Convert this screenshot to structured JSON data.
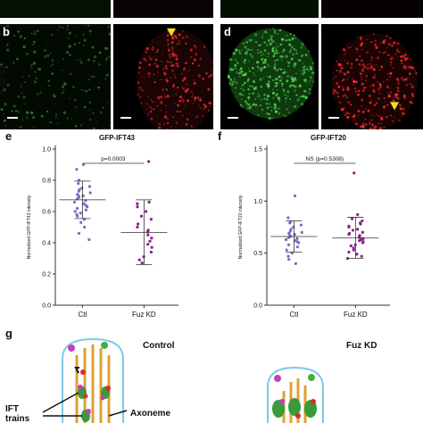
{
  "figure": {
    "row_label": "Fuz KD",
    "panel_letters": {
      "b": "b",
      "d": "d",
      "e": "e",
      "f": "f",
      "g": "g"
    }
  },
  "chart_data": [
    {
      "id": "e",
      "type": "scatter",
      "title": "GFP-IFT43",
      "ylabel": "Normalized GFP-IFT43 intensity",
      "categories": [
        "Ctl",
        "Fuz KD"
      ],
      "ylim": [
        0,
        1.0
      ],
      "yticks": [
        "0.0",
        "0.2",
        "0.4",
        "0.6",
        "0.8",
        "1.0"
      ],
      "significance": "p=0.0003",
      "groups": [
        {
          "name": "Ctl",
          "mean": 0.675,
          "sd_low": 0.555,
          "sd_high": 0.795,
          "color": "#7b68c8",
          "values": [
            0.9,
            0.87,
            0.8,
            0.78,
            0.76,
            0.75,
            0.74,
            0.73,
            0.72,
            0.71,
            0.7,
            0.7,
            0.69,
            0.68,
            0.67,
            0.66,
            0.65,
            0.64,
            0.63,
            0.62,
            0.61,
            0.6,
            0.59,
            0.58,
            0.57,
            0.55,
            0.53,
            0.5,
            0.46,
            0.42
          ]
        },
        {
          "name": "Fuz KD",
          "mean": 0.465,
          "sd_low": 0.26,
          "sd_high": 0.675,
          "color": "#8a1f8a",
          "values": [
            0.92,
            0.66,
            0.65,
            0.63,
            0.6,
            0.57,
            0.55,
            0.52,
            0.5,
            0.48,
            0.47,
            0.45,
            0.43,
            0.41,
            0.39,
            0.37,
            0.34,
            0.31,
            0.29,
            0.27
          ]
        }
      ]
    },
    {
      "id": "f",
      "type": "scatter",
      "title": "GFP-IFT20",
      "ylabel": "Normalized GFP-IFT20 intensity",
      "categories": [
        "Ctl",
        "Fuz KD"
      ],
      "ylim": [
        0,
        1.5
      ],
      "yticks": [
        "0.0",
        "0.5",
        "1.0",
        "1.5"
      ],
      "significance": "NS (p=0.5308)",
      "groups": [
        {
          "name": "Ctl",
          "mean": 0.66,
          "sd_low": 0.51,
          "sd_high": 0.81,
          "color": "#7b68c8",
          "values": [
            1.05,
            0.84,
            0.8,
            0.79,
            0.77,
            0.75,
            0.73,
            0.71,
            0.7,
            0.69,
            0.68,
            0.67,
            0.66,
            0.65,
            0.64,
            0.63,
            0.62,
            0.61,
            0.6,
            0.58,
            0.56,
            0.53,
            0.5,
            0.47,
            0.44,
            0.4
          ]
        },
        {
          "name": "Fuz KD",
          "mean": 0.645,
          "sd_low": 0.45,
          "sd_high": 0.845,
          "color": "#8a1f8a",
          "values": [
            1.27,
            0.87,
            0.83,
            0.81,
            0.79,
            0.78,
            0.76,
            0.75,
            0.73,
            0.72,
            0.7,
            0.69,
            0.68,
            0.67,
            0.66,
            0.65,
            0.64,
            0.63,
            0.62,
            0.61,
            0.6,
            0.58,
            0.57,
            0.55,
            0.53,
            0.51,
            0.49,
            0.47,
            0.45
          ]
        }
      ]
    }
  ],
  "diagram_g": {
    "control_title": "Control",
    "fuzkd_title": "Fuz KD",
    "ift_label_line1": "IFT",
    "ift_label_line2": "trains",
    "axoneme_label": "Axoneme"
  }
}
